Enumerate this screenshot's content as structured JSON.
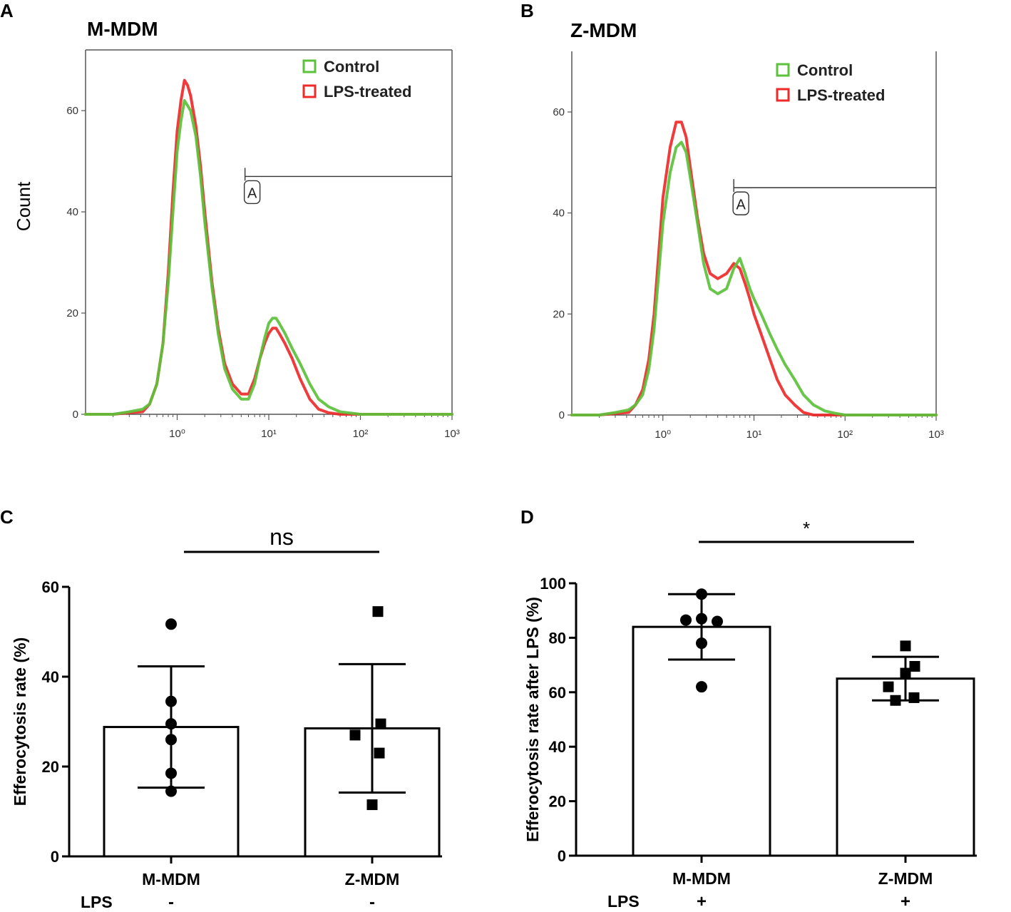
{
  "panels": {
    "A": {
      "letter": "A",
      "title": "M-MDM"
    },
    "B": {
      "letter": "B",
      "title": "Z-MDM"
    },
    "C": {
      "letter": "C"
    },
    "D": {
      "letter": "D"
    }
  },
  "colors": {
    "control": "#5cc13b",
    "lps": "#ee2a2a",
    "axis": "#000000",
    "frame": "#555555"
  },
  "chart_data": [
    {
      "id": "A",
      "type": "line",
      "title": "M-MDM",
      "ylabel": "Count",
      "xlabel": "",
      "xscale": "log",
      "xlim": [
        0.1,
        1000
      ],
      "ylim": [
        0,
        72
      ],
      "xticks": [
        1,
        10,
        100,
        1000
      ],
      "xtick_labels": [
        "10⁰",
        "10¹",
        "10²",
        "10³"
      ],
      "yticks": [
        0,
        20,
        40,
        60
      ],
      "ytick_labels": [
        "0",
        "20",
        "40",
        "60"
      ],
      "gate": {
        "label": "A",
        "x_start": 5.5,
        "x_end": 1000,
        "y": 47
      },
      "legend": [
        "Control",
        "LPS-treated"
      ],
      "series": [
        {
          "name": "Control",
          "color": "#5cc13b",
          "x": [
            0.1,
            0.2,
            0.3,
            0.42,
            0.5,
            0.6,
            0.7,
            0.8,
            0.9,
            1.0,
            1.1,
            1.2,
            1.3,
            1.4,
            1.6,
            1.8,
            2.0,
            2.4,
            2.8,
            3.3,
            4.0,
            5.0,
            6.0,
            7.0,
            8.0,
            9.0,
            10,
            11,
            12,
            13,
            15,
            18,
            22,
            28,
            35,
            45,
            60,
            100,
            200,
            1000
          ],
          "y": [
            0,
            0,
            0.5,
            1,
            2,
            6,
            14,
            26,
            40,
            52,
            58,
            62,
            61,
            60,
            55,
            47,
            38,
            25,
            16,
            9,
            5,
            3,
            3,
            6,
            11,
            15,
            18,
            19,
            19,
            18,
            16,
            13,
            10,
            6,
            3,
            1.5,
            0.5,
            0,
            0,
            0
          ]
        },
        {
          "name": "LPS-treated",
          "color": "#ee2a2a",
          "x": [
            0.1,
            0.2,
            0.3,
            0.42,
            0.5,
            0.6,
            0.7,
            0.8,
            0.9,
            1.0,
            1.1,
            1.2,
            1.3,
            1.4,
            1.6,
            1.8,
            2.0,
            2.4,
            2.8,
            3.3,
            4.0,
            5.0,
            6.0,
            7.0,
            8.0,
            9.0,
            10,
            11,
            12,
            13,
            15,
            18,
            22,
            28,
            35,
            45,
            60,
            100,
            200,
            1000
          ],
          "y": [
            0,
            0,
            0.3,
            0.5,
            2,
            6,
            14,
            28,
            44,
            56,
            62,
            66,
            65,
            63,
            57,
            49,
            40,
            26,
            17,
            10,
            6,
            4,
            4,
            7,
            11,
            14,
            16,
            17,
            17,
            16,
            14,
            11,
            7,
            3,
            1,
            0.3,
            0,
            0,
            0,
            0
          ]
        }
      ]
    },
    {
      "id": "B",
      "type": "line",
      "title": "Z-MDM",
      "ylabel": "",
      "xlabel": "",
      "xscale": "log",
      "xlim": [
        0.1,
        1000
      ],
      "ylim": [
        0,
        72
      ],
      "xticks": [
        1,
        10,
        100,
        1000
      ],
      "xtick_labels": [
        "10⁰",
        "10¹",
        "10²",
        "10³"
      ],
      "yticks": [
        0,
        20,
        40,
        60
      ],
      "ytick_labels": [
        "0",
        "20",
        "40",
        "60"
      ],
      "gate": {
        "label": "A",
        "x_start": 6,
        "x_end": 1000,
        "y": 45
      },
      "legend": [
        "Control",
        "LPS-treated"
      ],
      "series": [
        {
          "name": "Control",
          "color": "#5cc13b",
          "x": [
            0.1,
            0.2,
            0.3,
            0.42,
            0.5,
            0.6,
            0.7,
            0.8,
            0.9,
            1.0,
            1.2,
            1.4,
            1.6,
            1.8,
            2.0,
            2.4,
            2.8,
            3.3,
            4.0,
            5.0,
            6.0,
            7.0,
            8.0,
            9.0,
            10,
            12,
            15,
            18,
            22,
            28,
            35,
            45,
            60,
            80,
            100,
            200,
            1000
          ],
          "y": [
            0,
            0,
            0.5,
            1,
            2,
            4,
            9,
            17,
            28,
            38,
            48,
            53,
            54,
            52,
            47,
            38,
            30,
            25,
            24,
            25,
            29,
            31,
            28,
            25,
            23,
            20,
            16,
            13,
            10,
            7,
            4,
            2,
            0.8,
            0.3,
            0,
            0,
            0
          ]
        },
        {
          "name": "LPS-treated",
          "color": "#ee2a2a",
          "x": [
            0.1,
            0.2,
            0.3,
            0.42,
            0.5,
            0.6,
            0.7,
            0.8,
            0.9,
            1.0,
            1.2,
            1.4,
            1.6,
            1.8,
            2.0,
            2.4,
            2.8,
            3.3,
            4.0,
            5.0,
            6.0,
            7.0,
            8.0,
            9.0,
            10,
            12,
            15,
            18,
            22,
            28,
            35,
            45,
            60,
            80,
            100,
            200,
            1000
          ],
          "y": [
            0,
            0,
            0.3,
            0.5,
            2,
            5,
            11,
            20,
            32,
            43,
            53,
            58,
            58,
            55,
            49,
            39,
            32,
            28,
            27,
            28,
            30,
            29,
            26,
            23,
            20,
            16,
            11,
            7,
            4,
            2,
            0.5,
            0,
            0,
            0,
            0,
            0,
            0
          ]
        }
      ]
    },
    {
      "id": "C",
      "type": "bar",
      "title": "",
      "ylabel": "Efferocytosis rate (%)",
      "xlabel": "",
      "categories": [
        "M-MDM",
        "Z-MDM"
      ],
      "values": [
        28.8,
        28.5
      ],
      "error_low": [
        15.3,
        14.2
      ],
      "error_high": [
        42.3,
        42.8
      ],
      "points": [
        [
          14.5,
          18.5,
          26,
          29.5,
          34.5,
          51.7
        ],
        [
          11.5,
          23,
          27,
          29.5,
          54.5
        ]
      ],
      "markers": [
        "circle",
        "square"
      ],
      "ylim": [
        0,
        60
      ],
      "yticks": [
        0,
        20,
        40,
        60
      ],
      "ytick_labels": [
        "0",
        "20",
        "40",
        "60"
      ],
      "treatment_label": "LPS",
      "treatment": [
        "-",
        "-"
      ],
      "significance": "ns"
    },
    {
      "id": "D",
      "type": "bar",
      "title": "",
      "ylabel": "Efferocytosis rate after LPS (%)",
      "xlabel": "",
      "categories": [
        "M-MDM",
        "Z-MDM"
      ],
      "values": [
        84,
        65
      ],
      "error_low": [
        72,
        57
      ],
      "error_high": [
        96,
        73
      ],
      "points": [
        [
          62,
          78,
          86,
          86.5,
          87,
          96
        ],
        [
          57,
          58,
          62,
          67,
          69.5,
          77
        ]
      ],
      "markers": [
        "circle",
        "square"
      ],
      "ylim": [
        0,
        100
      ],
      "yticks": [
        0,
        20,
        40,
        60,
        80,
        100
      ],
      "ytick_labels": [
        "0",
        "20",
        "40",
        "60",
        "80",
        "100"
      ],
      "treatment_label": "LPS",
      "treatment": [
        "+",
        "+"
      ],
      "significance": "*"
    }
  ]
}
